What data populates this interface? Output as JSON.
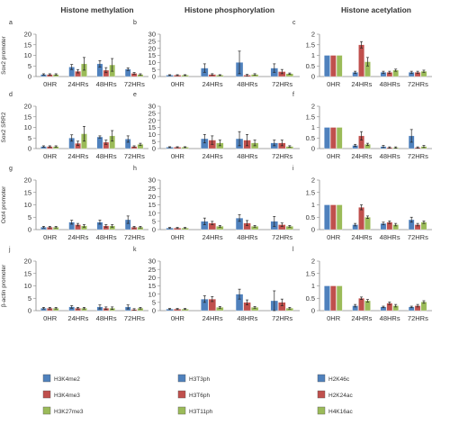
{
  "column_titles": [
    "Histone methylation",
    "Histone phosphorylation",
    "Histone acetylation"
  ],
  "row_labels": [
    "Sox2 promoter",
    "Sox2 SRR2",
    "Oct4 promoter",
    "β-actin promoter"
  ],
  "colors": {
    "blue": "#4F81BD",
    "red": "#C0504D",
    "green": "#9BBB59",
    "axis": "#888888",
    "text": "#333333",
    "grid": "#bbbbbb"
  },
  "legend": [
    {
      "label": "H3K4me2",
      "color": "#4F81BD"
    },
    {
      "label": "H3K4me3",
      "color": "#C0504D"
    },
    {
      "label": "H3K27me3",
      "color": "#9BBB59"
    },
    {
      "label": "H3T3ph",
      "color": "#4F81BD"
    },
    {
      "label": "H3T6ph",
      "color": "#C0504D"
    },
    {
      "label": "H3T11ph",
      "color": "#9BBB59"
    },
    {
      "label": "H2K46c",
      "color": "#4F81BD"
    },
    {
      "label": "H2K24ac",
      "color": "#C0504D"
    },
    {
      "label": "H4K16ac",
      "color": "#9BBB59"
    }
  ],
  "chart_data": [
    {
      "type": "bar",
      "panel": "a",
      "categories": [
        "0HR",
        "24HRs",
        "48HRs",
        "72HRs"
      ],
      "yticks": [
        "0",
        "5",
        "10",
        "15",
        "20"
      ],
      "ylim": [
        0,
        20
      ],
      "series": [
        {
          "values": [
            1,
            4.5,
            6,
            3.5
          ],
          "errors": [
            0.3,
            1.2,
            1.5,
            0.6
          ]
        },
        {
          "values": [
            1,
            2.5,
            3,
            1.5
          ],
          "errors": [
            0.3,
            0.8,
            1.2,
            0.4
          ]
        },
        {
          "values": [
            1,
            6,
            5.5,
            1
          ],
          "errors": [
            0.3,
            3,
            3,
            0.3
          ]
        }
      ]
    },
    {
      "type": "bar",
      "panel": "b",
      "categories": [
        "0HR",
        "24HRs",
        "48HRs",
        "72HRs"
      ],
      "yticks": [
        "0",
        "5",
        "10",
        "15",
        "20",
        "25",
        "30"
      ],
      "ylim": [
        0,
        30
      ],
      "series": [
        {
          "values": [
            1,
            6,
            10,
            6
          ],
          "errors": [
            0.3,
            3,
            8,
            3
          ]
        },
        {
          "values": [
            1,
            1.5,
            1,
            3.5
          ],
          "errors": [
            0.3,
            0.5,
            0.5,
            1.5
          ]
        },
        {
          "values": [
            1,
            1,
            1.5,
            2
          ],
          "errors": [
            0.3,
            0.3,
            0.5,
            0.5
          ]
        }
      ]
    },
    {
      "type": "bar",
      "panel": "c",
      "categories": [
        "0HR",
        "24HRs",
        "48HRs",
        "72HRs"
      ],
      "yticks": [
        "0",
        "0.5",
        "1",
        "1.5",
        "2"
      ],
      "ylim": [
        0,
        2
      ],
      "series": [
        {
          "values": [
            1,
            0.2,
            0.2,
            0.2
          ],
          "errors": [
            0,
            0.05,
            0.05,
            0.05
          ]
        },
        {
          "values": [
            1,
            1.5,
            0.2,
            0.2
          ],
          "errors": [
            0,
            0.15,
            0.05,
            0.05
          ]
        },
        {
          "values": [
            1,
            0.7,
            0.3,
            0.25
          ],
          "errors": [
            0,
            0.2,
            0.05,
            0.05
          ]
        }
      ]
    },
    {
      "type": "bar",
      "panel": "d",
      "categories": [
        "0HR",
        "24HRs",
        "48HRs",
        "72HRs"
      ],
      "yticks": [
        "0",
        "5",
        "10",
        "15",
        "20"
      ],
      "ylim": [
        0,
        20
      ],
      "series": [
        {
          "values": [
            1,
            5,
            5.5,
            4.5
          ],
          "errors": [
            0.3,
            1.5,
            0.5,
            1.5
          ]
        },
        {
          "values": [
            1,
            2.5,
            3,
            1
          ],
          "errors": [
            0.3,
            1,
            1,
            0.3
          ]
        },
        {
          "values": [
            1,
            7,
            6,
            2
          ],
          "errors": [
            0.3,
            3.5,
            2.5,
            0.5
          ]
        }
      ]
    },
    {
      "type": "bar",
      "panel": "e",
      "categories": [
        "0HR",
        "24HRs",
        "48HRs",
        "72HRs"
      ],
      "yticks": [
        "0",
        "5",
        "10",
        "15",
        "20",
        "25",
        "30"
      ],
      "ylim": [
        0,
        30
      ],
      "series": [
        {
          "values": [
            1,
            7,
            7,
            4
          ],
          "errors": [
            0.3,
            3,
            5,
            2
          ]
        },
        {
          "values": [
            1,
            6,
            6,
            4
          ],
          "errors": [
            0.3,
            3,
            4,
            2
          ]
        },
        {
          "values": [
            1,
            4,
            4,
            1.5
          ],
          "errors": [
            0.3,
            2,
            2,
            0.5
          ]
        }
      ]
    },
    {
      "type": "bar",
      "panel": "f",
      "categories": [
        "0HR",
        "24HRs",
        "48HRs",
        "72HRs"
      ],
      "yticks": [
        "0",
        "0.5",
        "1",
        "1.5",
        "2"
      ],
      "ylim": [
        0,
        2
      ],
      "series": [
        {
          "values": [
            1,
            0.15,
            0.1,
            0.6
          ],
          "errors": [
            0,
            0.05,
            0.05,
            0.3
          ]
        },
        {
          "values": [
            1,
            0.6,
            0.05,
            0.05
          ],
          "errors": [
            0,
            0.2,
            0.03,
            0.03
          ]
        },
        {
          "values": [
            1,
            0.2,
            0.05,
            0.1
          ],
          "errors": [
            0,
            0.05,
            0.03,
            0.05
          ]
        }
      ]
    },
    {
      "type": "bar",
      "panel": "g",
      "categories": [
        "0HR",
        "24HRs",
        "48HRs",
        "72HRs"
      ],
      "yticks": [
        "0",
        "5",
        "10",
        "15",
        "20"
      ],
      "ylim": [
        0,
        20
      ],
      "series": [
        {
          "values": [
            1,
            3,
            3,
            4
          ],
          "errors": [
            0.3,
            0.8,
            0.8,
            1.5
          ]
        },
        {
          "values": [
            1,
            2,
            1.5,
            1
          ],
          "errors": [
            0.3,
            0.5,
            0.5,
            0.3
          ]
        },
        {
          "values": [
            1,
            1.5,
            1.5,
            1
          ],
          "errors": [
            0.3,
            0.5,
            0.5,
            0.3
          ]
        }
      ]
    },
    {
      "type": "bar",
      "panel": "h",
      "categories": [
        "0HR",
        "24HRs",
        "48HRs",
        "72HRs"
      ],
      "yticks": [
        "0",
        "5",
        "10",
        "15",
        "20",
        "25",
        "30"
      ],
      "ylim": [
        0,
        30
      ],
      "series": [
        {
          "values": [
            1,
            5,
            7,
            5
          ],
          "errors": [
            0.3,
            2,
            2,
            3
          ]
        },
        {
          "values": [
            1,
            4,
            4,
            3
          ],
          "errors": [
            0.3,
            1,
            1.5,
            1
          ]
        },
        {
          "values": [
            1,
            2,
            2,
            2
          ],
          "errors": [
            0.3,
            0.5,
            0.5,
            0.5
          ]
        }
      ]
    },
    {
      "type": "bar",
      "panel": "i",
      "categories": [
        "0HR",
        "24HRs",
        "48HRs",
        "72HRs"
      ],
      "yticks": [
        "0",
        "0.5",
        "1",
        "1.5",
        "2"
      ],
      "ylim": [
        0,
        2
      ],
      "series": [
        {
          "values": [
            1,
            0.2,
            0.25,
            0.4
          ],
          "errors": [
            0,
            0.05,
            0.05,
            0.1
          ]
        },
        {
          "values": [
            1,
            0.9,
            0.3,
            0.2
          ],
          "errors": [
            0,
            0.1,
            0.05,
            0.05
          ]
        },
        {
          "values": [
            1,
            0.5,
            0.2,
            0.3
          ],
          "errors": [
            0,
            0.05,
            0.05,
            0.05
          ]
        }
      ]
    },
    {
      "type": "bar",
      "panel": "j",
      "categories": [
        "0HR",
        "24HRs",
        "48HRs",
        "72HRs"
      ],
      "yticks": [
        "0",
        "5",
        "10",
        "15",
        "20"
      ],
      "ylim": [
        0,
        20
      ],
      "series": [
        {
          "values": [
            1,
            1.5,
            1.5,
            1.5
          ],
          "errors": [
            0.3,
            0.5,
            0.8,
            0.8
          ]
        },
        {
          "values": [
            1,
            1,
            1,
            0.5
          ],
          "errors": [
            0.3,
            0.3,
            0.5,
            0.3
          ]
        },
        {
          "values": [
            1,
            1,
            1,
            1
          ],
          "errors": [
            0.3,
            0.3,
            0.5,
            0.3
          ]
        }
      ]
    },
    {
      "type": "bar",
      "panel": "k",
      "categories": [
        "0HR",
        "24HRs",
        "48HRs",
        "72HRs"
      ],
      "yticks": [
        "0",
        "5",
        "10",
        "15",
        "20",
        "25",
        "30"
      ],
      "ylim": [
        0,
        30
      ],
      "series": [
        {
          "values": [
            1,
            7,
            10,
            6
          ],
          "errors": [
            0.3,
            2,
            3,
            6
          ]
        },
        {
          "values": [
            1,
            7,
            5,
            5
          ],
          "errors": [
            0.3,
            1.5,
            1.5,
            2
          ]
        },
        {
          "values": [
            1,
            2,
            2,
            1.5
          ],
          "errors": [
            0.3,
            0.5,
            0.5,
            0.5
          ]
        }
      ]
    },
    {
      "type": "bar",
      "panel": "l",
      "categories": [
        "0HR",
        "24HRs",
        "48HRs",
        "72HRs"
      ],
      "yticks": [
        "0",
        "0.5",
        "1",
        "1.5",
        "2"
      ],
      "ylim": [
        0,
        2
      ],
      "series": [
        {
          "values": [
            1,
            0.2,
            0.15,
            0.15
          ],
          "errors": [
            0,
            0.05,
            0.03,
            0.03
          ]
        },
        {
          "values": [
            1,
            0.5,
            0.3,
            0.2
          ],
          "errors": [
            0,
            0.05,
            0.05,
            0.05
          ]
        },
        {
          "values": [
            1,
            0.4,
            0.2,
            0.35
          ],
          "errors": [
            0,
            0.05,
            0.05,
            0.05
          ]
        }
      ]
    }
  ]
}
